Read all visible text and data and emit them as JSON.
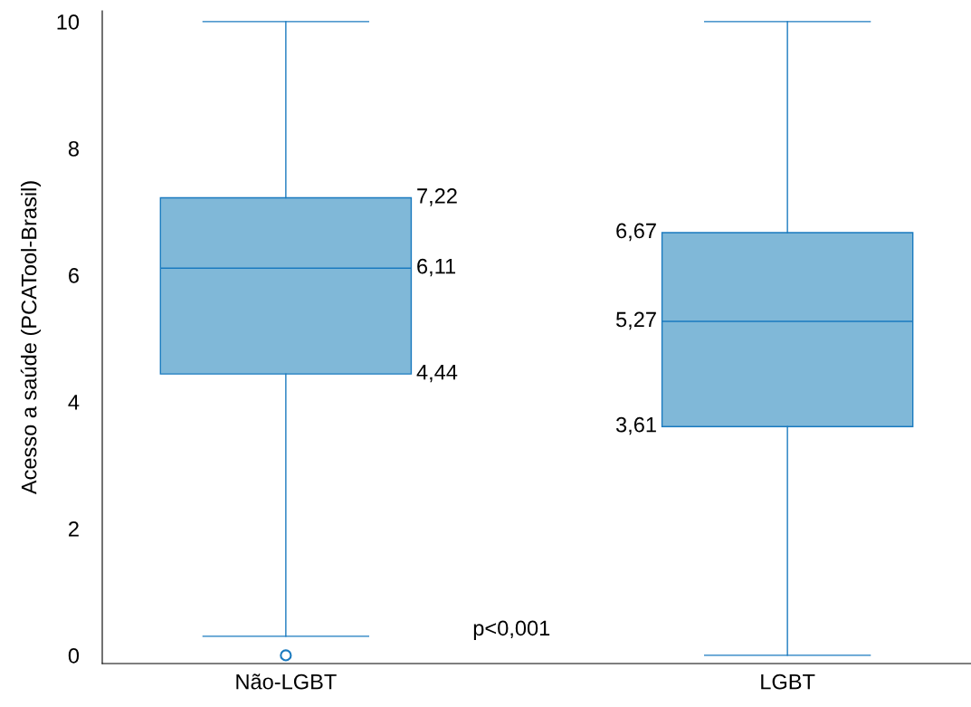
{
  "chart_data": {
    "type": "box",
    "ylabel": "Acesso a saúde (PCATool-Brasil)",
    "categories": [
      "Não-LGBT",
      "LGBT"
    ],
    "boxes": [
      {
        "low": 0.3,
        "q1": 4.44,
        "median": 6.11,
        "q3": 7.22,
        "high": 10,
        "outliers": [
          0
        ]
      },
      {
        "low": 0,
        "q1": 3.61,
        "median": 5.27,
        "q3": 6.67,
        "high": 10
      }
    ],
    "color": "#80b8d8",
    "ylim": [
      -0.13,
      10.17
    ],
    "yticks": [
      0,
      2,
      4,
      6,
      8,
      10
    ],
    "grid": false,
    "annotations": [
      "7,22",
      "6,11",
      "4,44",
      "6,67",
      "5,27",
      "3,61",
      "p<0,001"
    ]
  }
}
